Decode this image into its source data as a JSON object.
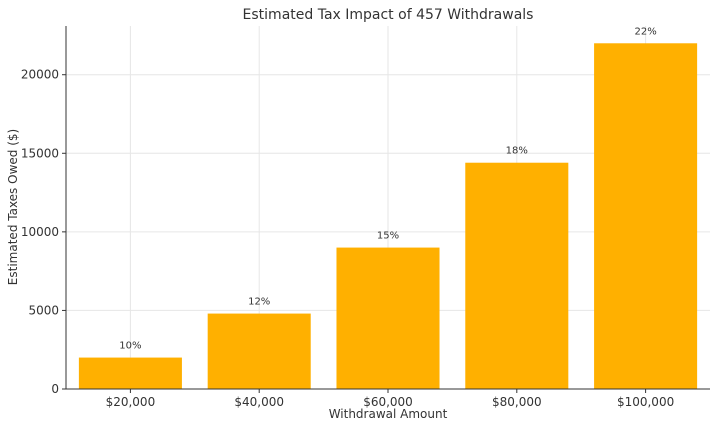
{
  "chart_data": {
    "type": "bar",
    "title": "Estimated Tax Impact of 457 Withdrawals",
    "xlabel": "Withdrawal Amount",
    "ylabel": "Estimated Taxes Owed ($)",
    "categories": [
      "$20,000",
      "$40,000",
      "$60,000",
      "$80,000",
      "$100,000"
    ],
    "values": [
      2000,
      4800,
      9000,
      14400,
      22000
    ],
    "bar_labels": [
      "10%",
      "12%",
      "15%",
      "18%",
      "22%"
    ],
    "ylim": [
      0,
      23100
    ],
    "yticks": [
      0,
      5000,
      10000,
      15000,
      20000
    ],
    "grid": true,
    "bar_color": "#FFB000"
  }
}
